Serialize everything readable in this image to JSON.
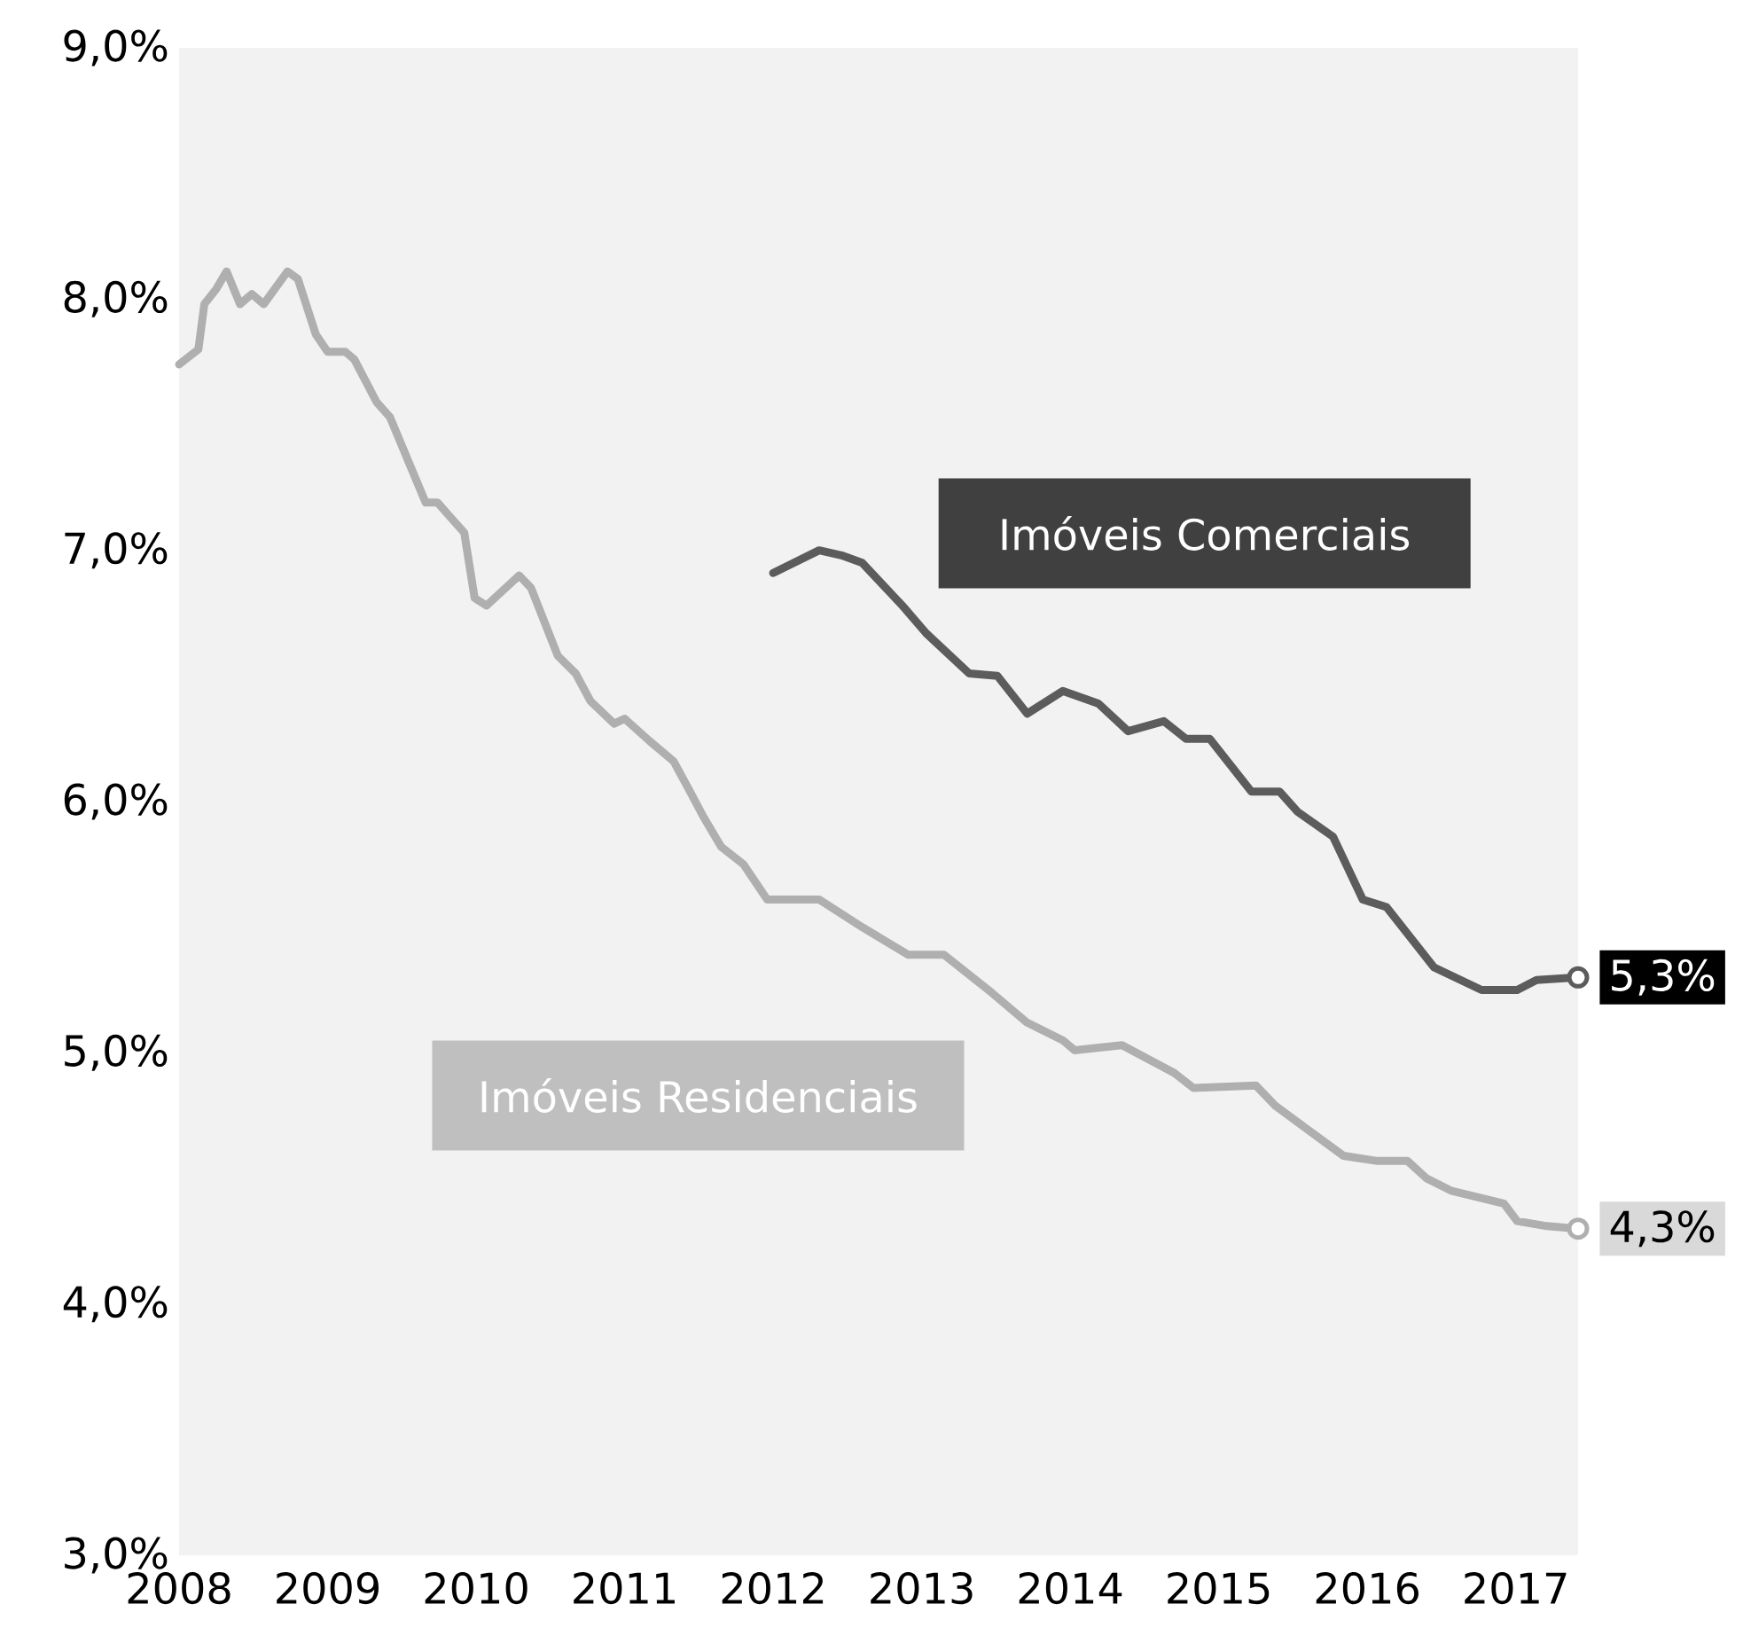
{
  "chart_data": {
    "type": "line",
    "xlim": [
      2008,
      2017.42
    ],
    "ylim": [
      3,
      9
    ],
    "xticks": [
      2008,
      2009,
      2010,
      2011,
      2012,
      2013,
      2014,
      2015,
      2016,
      2017
    ],
    "yticks": [
      {
        "value": 3,
        "label": "3,0%"
      },
      {
        "value": 4,
        "label": "4,0%"
      },
      {
        "value": 5,
        "label": "5,0%"
      },
      {
        "value": 6,
        "label": "6,0%"
      },
      {
        "value": 7,
        "label": "7,0%"
      },
      {
        "value": 8,
        "label": "8,0%"
      },
      {
        "value": 9,
        "label": "9,0%"
      }
    ],
    "grid": false,
    "legend": false,
    "line_style": "solid",
    "series": [
      {
        "name": "Imóveis Comerciais",
        "color": "#5c5c5c",
        "x": [
          2012.0,
          2012.31,
          2012.46,
          2012.6,
          2012.87,
          2013.03,
          2013.32,
          2013.51,
          2013.71,
          2013.95,
          2014.19,
          2014.39,
          2014.63,
          2014.78,
          2014.94,
          2015.22,
          2015.41,
          2015.53,
          2015.77,
          2015.97,
          2016.13,
          2016.45,
          2016.77,
          2017.01,
          2017.14,
          2017.42
        ],
        "values": [
          6.91,
          7.0,
          6.98,
          6.95,
          6.78,
          6.67,
          6.51,
          6.5,
          6.35,
          6.44,
          6.39,
          6.28,
          6.32,
          6.25,
          6.25,
          6.04,
          6.04,
          5.96,
          5.86,
          5.61,
          5.58,
          5.34,
          5.25,
          5.25,
          5.29,
          5.3
        ],
        "value_labels": [
          null,
          null,
          null,
          null,
          null,
          null,
          null,
          null,
          null,
          null,
          null,
          null,
          null,
          null,
          null,
          null,
          null,
          null,
          null,
          null,
          null,
          null,
          null,
          null,
          null,
          "5,3%"
        ]
      },
      {
        "name": "Imóveis Residenciais",
        "color": "#afafaf",
        "x": [
          2008.0,
          2008.13,
          2008.17,
          2008.25,
          2008.32,
          2008.41,
          2008.49,
          2008.57,
          2008.73,
          2008.8,
          2008.92,
          2009.0,
          2009.12,
          2009.18,
          2009.33,
          2009.42,
          2009.54,
          2009.66,
          2009.74,
          2009.92,
          2009.99,
          2010.07,
          2010.29,
          2010.37,
          2010.55,
          2010.67,
          2010.77,
          2010.93,
          2011.0,
          2011.17,
          2011.33,
          2011.44,
          2011.53,
          2011.65,
          2011.8,
          2011.96,
          2012.31,
          2012.6,
          2012.91,
          2013.15,
          2013.47,
          2013.71,
          2013.95,
          2014.03,
          2014.35,
          2014.7,
          2014.83,
          2015.25,
          2015.38,
          2015.54,
          2015.84,
          2016.06,
          2016.27,
          2016.4,
          2016.57,
          2016.92,
          2017.01,
          2017.21,
          2017.42
        ],
        "values": [
          7.74,
          7.8,
          7.98,
          8.04,
          8.11,
          7.98,
          8.02,
          7.98,
          8.11,
          8.08,
          7.86,
          7.79,
          7.79,
          7.76,
          7.59,
          7.53,
          7.36,
          7.19,
          7.19,
          7.07,
          6.81,
          6.78,
          6.9,
          6.85,
          6.58,
          6.51,
          6.4,
          6.31,
          6.33,
          6.24,
          6.16,
          6.04,
          5.94,
          5.82,
          5.75,
          5.61,
          5.61,
          5.5,
          5.39,
          5.39,
          5.24,
          5.12,
          5.05,
          5.01,
          5.03,
          4.92,
          4.86,
          4.87,
          4.79,
          4.72,
          4.59,
          4.57,
          4.57,
          4.5,
          4.45,
          4.4,
          4.33,
          4.31,
          4.3
        ],
        "value_labels": [
          null,
          null,
          null,
          null,
          null,
          null,
          null,
          null,
          null,
          null,
          null,
          null,
          null,
          null,
          null,
          null,
          null,
          null,
          null,
          null,
          null,
          null,
          null,
          null,
          null,
          null,
          null,
          null,
          null,
          null,
          null,
          null,
          null,
          null,
          null,
          null,
          null,
          null,
          null,
          null,
          null,
          null,
          null,
          null,
          null,
          null,
          null,
          null,
          null,
          null,
          null,
          null,
          null,
          null,
          null,
          null,
          null,
          null,
          "4,3%"
        ]
      }
    ]
  }
}
